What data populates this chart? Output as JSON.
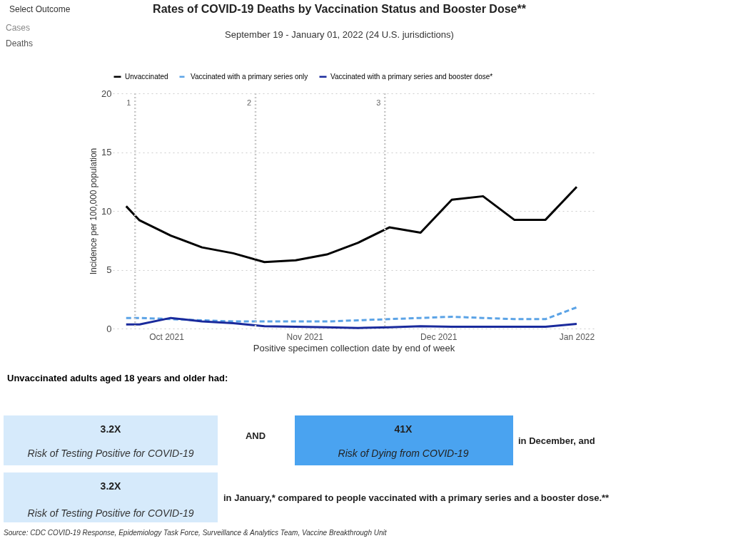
{
  "chart_data": {
    "type": "line",
    "title": "Rates of COVID-19 Deaths by Vaccination Status and Booster Dose**",
    "subtitle": "September 19 - January 01, 2022 (24 U.S. jurisdictions)",
    "xlabel": "Positive specimen collection date by end of week",
    "ylabel": "Incidence per 100,000 population",
    "x": [
      "2021-09-22",
      "2021-09-25",
      "2021-10-02",
      "2021-10-09",
      "2021-10-16",
      "2021-10-23",
      "2021-10-30",
      "2021-11-06",
      "2021-11-13",
      "2021-11-20",
      "2021-11-27",
      "2021-12-04",
      "2021-12-11",
      "2021-12-18",
      "2021-12-25",
      "2022-01-01"
    ],
    "series": [
      {
        "name": "Unvaccinated",
        "color": "#000000",
        "line_style": "solid",
        "values": [
          10.4,
          9.2,
          7.9,
          6.9,
          6.4,
          5.65,
          5.8,
          6.3,
          7.3,
          8.6,
          8.15,
          10.95,
          11.25,
          9.25,
          9.25,
          12.05
        ]
      },
      {
        "name": "Vaccinated with a primary series only",
        "color": "#5ba3e6",
        "line_style": "dashed",
        "values": [
          0.9,
          0.9,
          0.8,
          0.7,
          0.6,
          0.6,
          0.6,
          0.6,
          0.7,
          0.8,
          0.9,
          1.0,
          0.9,
          0.8,
          0.8,
          1.8
        ]
      },
      {
        "name": "Vaccinated with a primary series and booster dose*",
        "color": "#1a2a9c",
        "line_style": "solid",
        "values": [
          0.35,
          0.35,
          0.9,
          0.6,
          0.45,
          0.2,
          0.15,
          0.1,
          0.05,
          0.1,
          0.2,
          0.15,
          0.15,
          0.15,
          0.15,
          0.4
        ]
      }
    ],
    "xlim": [
      "2021-09-19",
      "2022-01-05"
    ],
    "xticks": [
      {
        "value": "2021-10-01",
        "label": "Oct 2021"
      },
      {
        "value": "2021-11-01",
        "label": "Nov 2021"
      },
      {
        "value": "2021-12-01",
        "label": "Dec 2021"
      },
      {
        "value": "2022-01-01",
        "label": "Jan 2022"
      }
    ],
    "ylim": [
      0,
      20
    ],
    "yticks": [
      0,
      5,
      10,
      15,
      20
    ],
    "ref_lines": [
      {
        "axis": "x",
        "value": "2021-09-24",
        "label": "1",
        "color": "#c8c8c8",
        "line_style": "dotted"
      },
      {
        "axis": "x",
        "value": "2021-10-21",
        "label": "2",
        "color": "#c8c8c8",
        "line_style": "dotted"
      },
      {
        "axis": "x",
        "value": "2021-11-19",
        "label": "3",
        "color": "#c8c8c8",
        "line_style": "dotted"
      }
    ],
    "grid": "y",
    "legend": "top",
    "annotations": [
      "Select Outcome",
      "Cases",
      "Deaths",
      "Unvaccinated adults aged 18 years and older had:",
      "3.2X",
      "Risk of Testing Positive for COVID-19",
      "AND",
      "41X",
      "Risk of Dying from COVID-19",
      "in December, and",
      "3.2X",
      "Risk of Testing Positive for COVID-19",
      "in January,* compared to people vaccinated with a primary series and a booster dose.**",
      "Source: CDC COVID-19 Response, Epidemiology Task Force, Surveillance & Analytics Team, Vaccine Breakthrough Unit"
    ]
  }
}
